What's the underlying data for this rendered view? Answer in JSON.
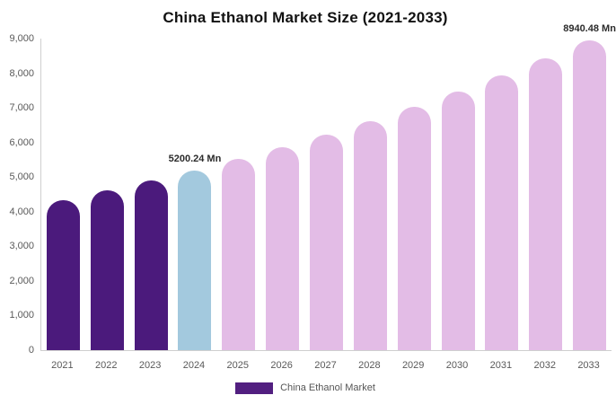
{
  "chart_data": {
    "type": "bar",
    "title": "China Ethanol Market Size (2021-2033)",
    "unit": "Mn",
    "categories": [
      "2021",
      "2022",
      "2023",
      "2024",
      "2025",
      "2026",
      "2027",
      "2028",
      "2029",
      "2030",
      "2031",
      "2032",
      "2033"
    ],
    "series": [
      {
        "name": "China Ethanol Market",
        "values": [
          4340,
          4610,
          4900,
          5200.24,
          5520,
          5870,
          6230,
          6620,
          7030,
          7460,
          7930,
          8420,
          8940.48
        ]
      }
    ],
    "point_colors": [
      "#4b1a7c",
      "#4b1a7c",
      "#4b1a7c",
      "#a3c9de",
      "#e3bce6",
      "#e3bce6",
      "#e3bce6",
      "#e3bce6",
      "#e3bce6",
      "#e3bce6",
      "#e3bce6",
      "#e3bce6",
      "#e3bce6"
    ],
    "color_meaning": {
      "historical": "#4b1a7c",
      "base_year": "#a3c9de",
      "forecast": "#e3bce6"
    },
    "data_labels": [
      "",
      "",
      "",
      "5200.24 Mn",
      "",
      "",
      "",
      "",
      "",
      "",
      "",
      "",
      "8940.48 Mn"
    ],
    "xlabel": "",
    "ylabel": "",
    "ylim": [
      0,
      9000
    ],
    "y_tick_labels": [
      "0",
      "1,000",
      "2,000",
      "3,000",
      "4,000",
      "5,000",
      "6,000",
      "7,000",
      "8,000",
      "9,000"
    ],
    "grid": false,
    "legend": {
      "position": "bottom",
      "entries": [
        {
          "label": "China Ethanol Market",
          "color": "#521f80"
        }
      ]
    }
  }
}
